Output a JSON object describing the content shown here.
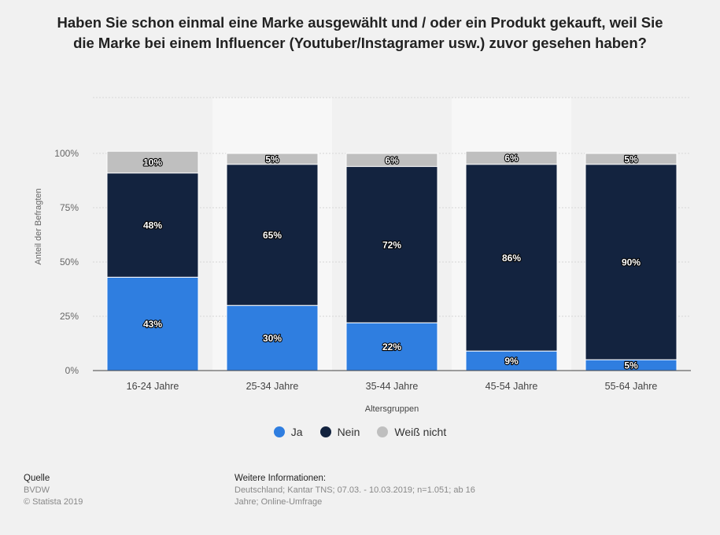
{
  "title": "Haben Sie schon einmal eine Marke ausgewählt und / oder ein Produkt gekauft, weil Sie die Marke bei einem Influencer (Youtuber/Instagramer usw.) zuvor gesehen haben?",
  "colors": {
    "ja": "#2f7ee0",
    "nein": "#13233f",
    "weiss_nicht": "#bfbfbf",
    "label_text": "#ffffff",
    "grid": "#d6d6d6",
    "alt_band": "#f7f7f7"
  },
  "chart_data": {
    "type": "bar",
    "stacked": true,
    "categories": [
      "16-24 Jahre",
      "25-34 Jahre",
      "35-44 Jahre",
      "45-54 Jahre",
      "55-64 Jahre"
    ],
    "series": [
      {
        "name": "Ja",
        "values": [
          43,
          30,
          22,
          9,
          5
        ]
      },
      {
        "name": "Nein",
        "values": [
          48,
          65,
          72,
          86,
          90
        ]
      },
      {
        "name": "Weiß nicht",
        "values": [
          10,
          5,
          6,
          6,
          5
        ]
      }
    ],
    "data_labels": [
      [
        "43%",
        "30%",
        "22%",
        "9%",
        "5%"
      ],
      [
        "48%",
        "65%",
        "72%",
        "86%",
        "90%"
      ],
      [
        "10%",
        "5%",
        "6%",
        "6%",
        "5%"
      ]
    ],
    "yticks": [
      "0%",
      "25%",
      "50%",
      "75%",
      "100%"
    ],
    "ylim": [
      0,
      100
    ],
    "xlabel": "Altersgruppen",
    "ylabel": "Anteil der Befragten",
    "legend_position": "bottom",
    "grid": true
  },
  "footer": {
    "source_heading": "Quelle",
    "source_name": "BVDW",
    "copyright": "© Statista 2019",
    "info_heading": "Weitere Informationen:",
    "info_text": "Deutschland; Kantar TNS; 07.03. - 10.03.2019; n=1.051; ab 16 Jahre; Online-Umfrage"
  }
}
